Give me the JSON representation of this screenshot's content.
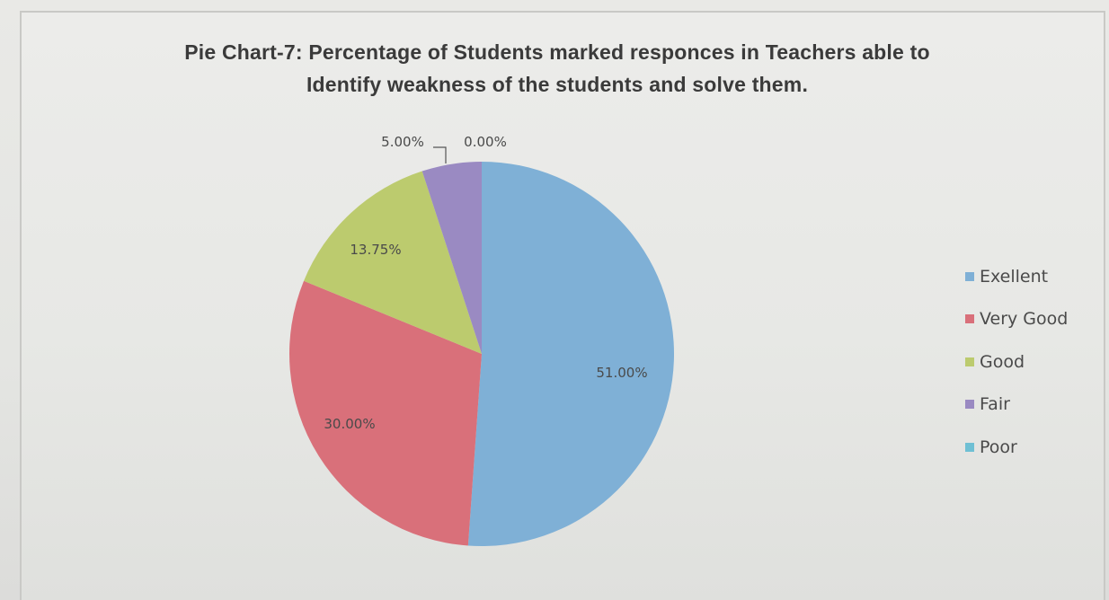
{
  "chart_data": {
    "type": "pie",
    "title_line1": "Pie Chart-7: Percentage of Students marked responces in Teachers able to",
    "title_line2": "Identify weakness of the students and solve them.",
    "legend_position": "right",
    "slices": [
      {
        "label": "Exellent",
        "value": 51.0,
        "display": "51.00%",
        "color": "#7fb0d6"
      },
      {
        "label": "Very Good",
        "value": 30.0,
        "display": "30.00%",
        "color": "#d9707a"
      },
      {
        "label": "Good",
        "value": 13.75,
        "display": "13.75%",
        "color": "#bccb6e"
      },
      {
        "label": "Fair",
        "value": 5.0,
        "display": "5.00%",
        "color": "#9a8ac2"
      },
      {
        "label": "Poor",
        "value": 0.0,
        "display": "0.00%",
        "color": "#6fc0d4"
      }
    ]
  }
}
